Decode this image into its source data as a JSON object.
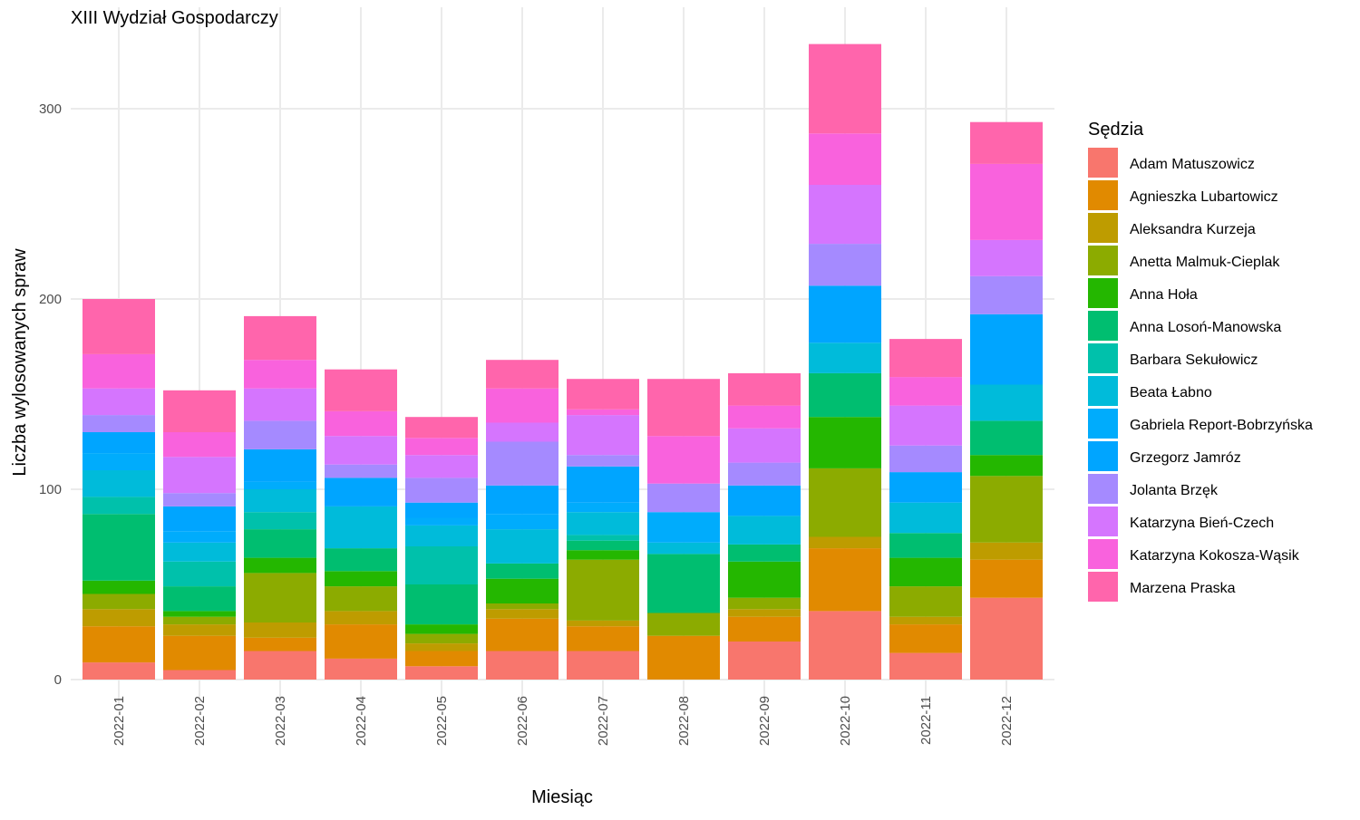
{
  "chart_data": {
    "type": "bar",
    "stacked": true,
    "title": "XIII Wydział Gospodarczy",
    "xlabel": "Miesiąc",
    "ylabel": "Liczba wylosowanych spraw",
    "ylim": [
      0,
      335
    ],
    "yticks": [
      0,
      100,
      200,
      300
    ],
    "grid": true,
    "legend_title": "Sędzia",
    "legend_position": "right",
    "categories": [
      "2022-01",
      "2022-02",
      "2022-03",
      "2022-04",
      "2022-05",
      "2022-06",
      "2022-07",
      "2022-08",
      "2022-09",
      "2022-10",
      "2022-11",
      "2022-12"
    ],
    "series": [
      {
        "name": "Adam Matuszowicz",
        "color": "#F8766D",
        "values": [
          9,
          5,
          15,
          11,
          7,
          15,
          15,
          0,
          20,
          36,
          14,
          43
        ]
      },
      {
        "name": "Agnieszka Lubartowicz",
        "color": "#E18A00",
        "values": [
          19,
          18,
          7,
          18,
          8,
          17,
          13,
          23,
          13,
          33,
          15,
          20
        ]
      },
      {
        "name": "Aleksandra Kurzeja",
        "color": "#BE9C00",
        "values": [
          9,
          6,
          8,
          7,
          4,
          5,
          3,
          0,
          4,
          6,
          4,
          9
        ]
      },
      {
        "name": "Anetta Malmuk-Cieplak",
        "color": "#8CAB00",
        "values": [
          8,
          4,
          26,
          13,
          5,
          3,
          32,
          12,
          6,
          36,
          16,
          35
        ]
      },
      {
        "name": "Anna Hoła",
        "color": "#24B700",
        "values": [
          7,
          3,
          8,
          8,
          5,
          13,
          5,
          0,
          19,
          27,
          15,
          11
        ]
      },
      {
        "name": "Anna Losoń-Manowska",
        "color": "#00BE70",
        "values": [
          35,
          13,
          15,
          12,
          21,
          8,
          5,
          31,
          9,
          23,
          13,
          18
        ]
      },
      {
        "name": "Barbara Sekułowicz",
        "color": "#00C1AB",
        "values": [
          9,
          13,
          9,
          0,
          20,
          0,
          3,
          0,
          0,
          0,
          0,
          0
        ]
      },
      {
        "name": "Beata Łabno",
        "color": "#00BBDA",
        "values": [
          14,
          10,
          12,
          22,
          11,
          18,
          12,
          6,
          15,
          16,
          16,
          19
        ]
      },
      {
        "name": "Gabriela Report-Bobrzyńska",
        "color": "#00ACFC",
        "values": [
          9,
          6,
          4,
          0,
          4,
          8,
          5,
          16,
          0,
          0,
          0,
          0
        ]
      },
      {
        "name": "Grzegorz Jamróz",
        "color": "#00A5FF",
        "values": [
          11,
          13,
          17,
          15,
          8,
          15,
          19,
          0,
          16,
          30,
          16,
          37
        ]
      },
      {
        "name": "Jolanta Brzęk",
        "color": "#A58AFF",
        "values": [
          9,
          7,
          15,
          7,
          13,
          23,
          6,
          15,
          12,
          22,
          14,
          20
        ]
      },
      {
        "name": "Katarzyna Bień-Czech",
        "color": "#D575FE",
        "values": [
          14,
          19,
          17,
          15,
          12,
          10,
          21,
          0,
          18,
          31,
          21,
          19
        ]
      },
      {
        "name": "Katarzyna Kokosza-Wąsik",
        "color": "#F962DD",
        "values": [
          18,
          13,
          15,
          13,
          9,
          18,
          3,
          25,
          12,
          27,
          15,
          40
        ]
      },
      {
        "name": "Marzena Praska",
        "color": "#FF65AC",
        "values": [
          29,
          22,
          23,
          22,
          11,
          15,
          16,
          30,
          17,
          47,
          20,
          22
        ]
      }
    ]
  }
}
